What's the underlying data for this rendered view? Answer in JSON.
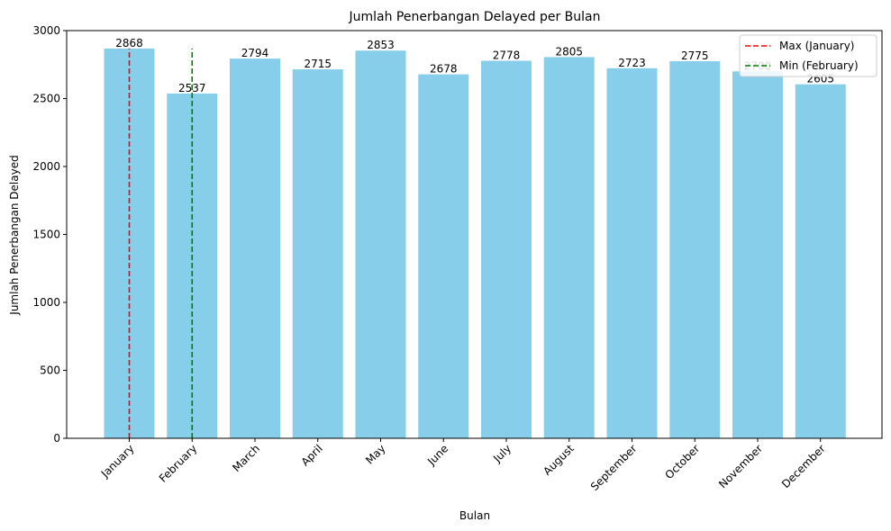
{
  "chart_data": {
    "type": "bar",
    "title": "Jumlah Penerbangan Delayed per Bulan",
    "xlabel": "Bulan",
    "ylabel": "Jumlah Penerbangan Delayed",
    "categories": [
      "January",
      "February",
      "March",
      "April",
      "May",
      "June",
      "July",
      "August",
      "September",
      "October",
      "November",
      "December"
    ],
    "values": [
      2868,
      2537,
      2794,
      2715,
      2853,
      2678,
      2778,
      2805,
      2723,
      2775,
      2700,
      2605
    ],
    "value_labels": [
      "2868",
      "2537",
      "2794",
      "2715",
      "2853",
      "2678",
      "2778",
      "2805",
      "2723",
      "2775",
      "2700",
      "2605"
    ],
    "ylim": [
      0,
      3000
    ],
    "yticks": [
      0,
      500,
      1000,
      1500,
      2000,
      2500,
      3000
    ],
    "ytick_labels": [
      "0",
      "500",
      "1000",
      "1500",
      "2000",
      "2500",
      "3000"
    ],
    "bar_color": "#87ceeb",
    "grid": false,
    "reference_lines": [
      {
        "label": "Max (January)",
        "category": "January",
        "y_from": 0,
        "y_to": 2868,
        "color": "#ff0000",
        "style": "dashed"
      },
      {
        "label": "Min (February)",
        "category": "February",
        "y_from": 0,
        "y_to": 2868,
        "color": "#008000",
        "style": "dashed"
      }
    ],
    "legend": {
      "position": "top-right",
      "entries": [
        {
          "label": "Max (January)",
          "color": "#ff0000"
        },
        {
          "label": "Min (February)",
          "color": "#008000"
        }
      ]
    }
  }
}
